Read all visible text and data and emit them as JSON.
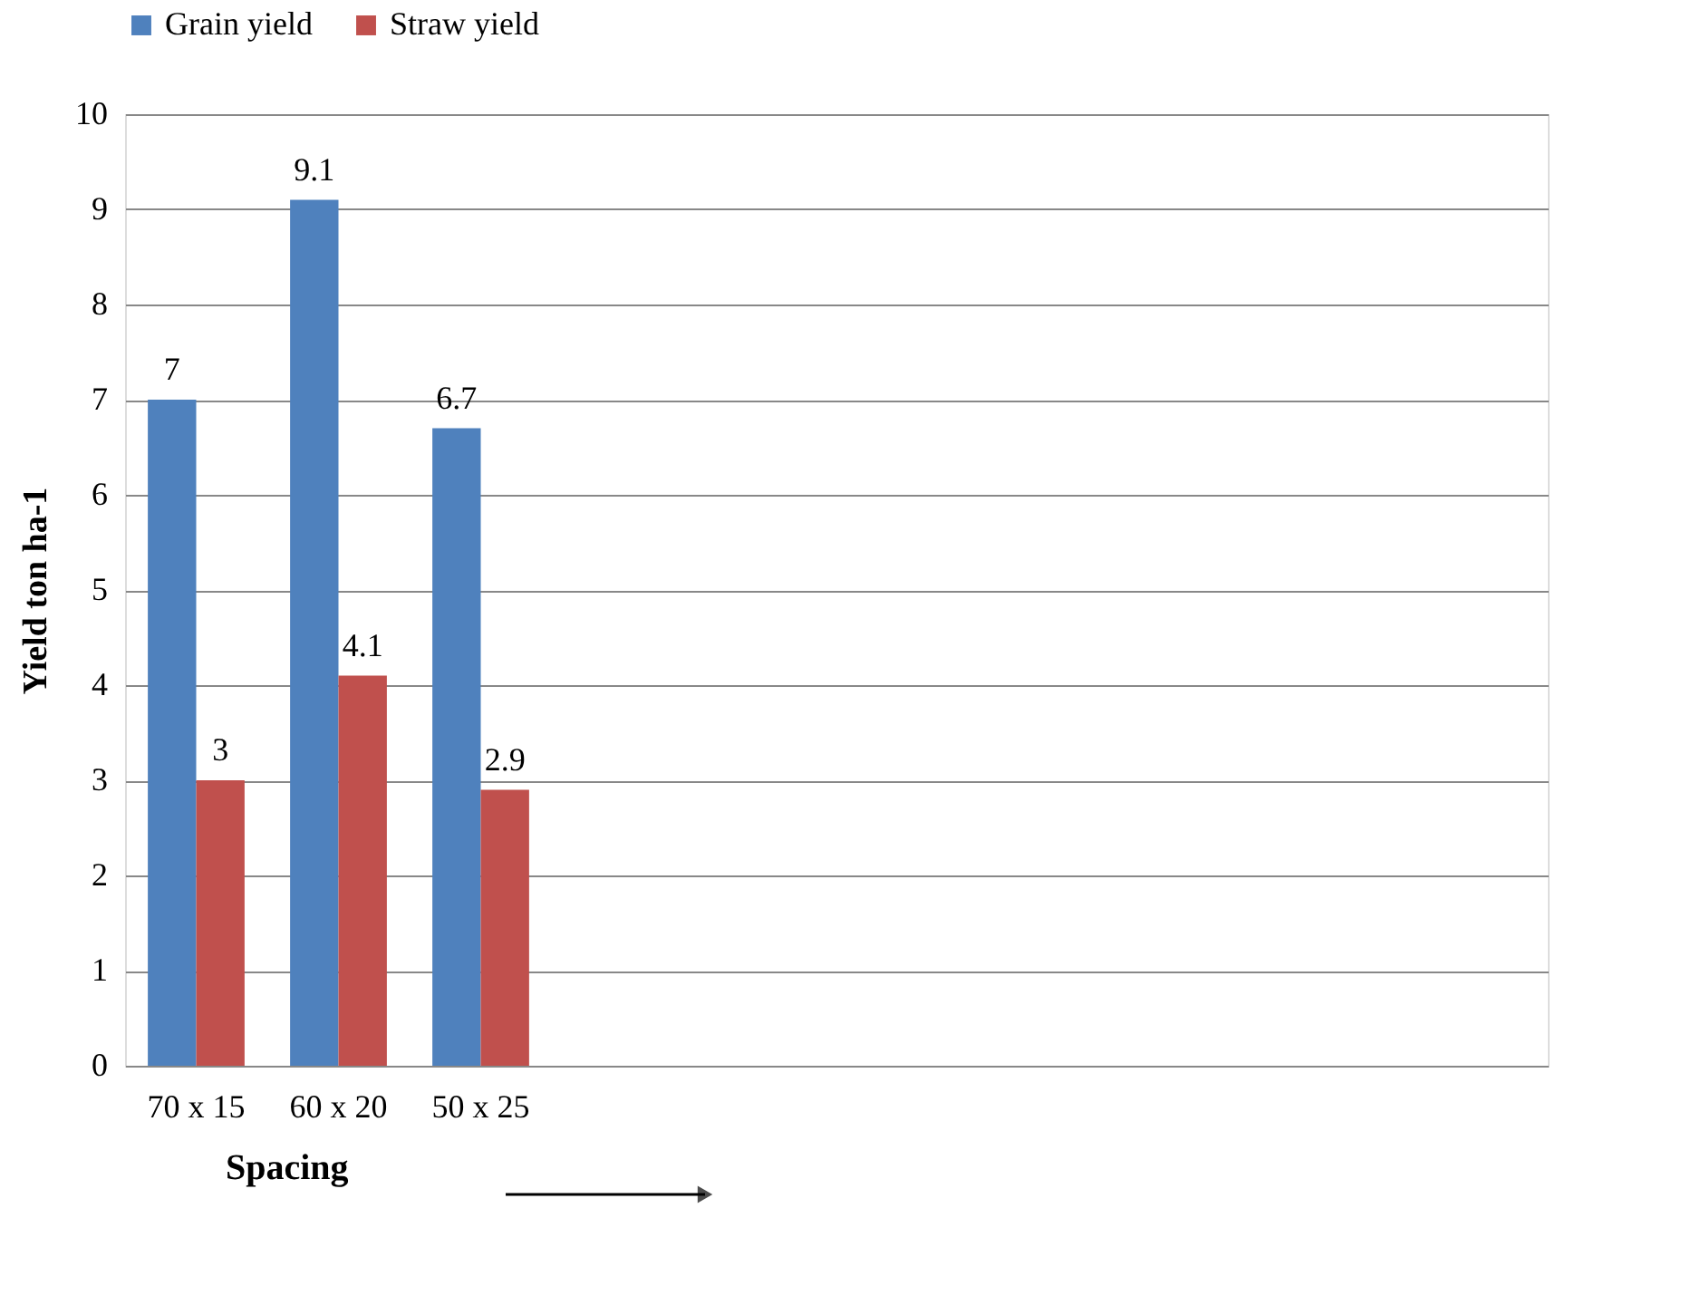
{
  "chart_data": {
    "type": "bar",
    "xlabel": "Spacing",
    "ylabel": "Yield ton ha-1",
    "categories": [
      "70 x 15",
      "60 x 20",
      "50  x  25",
      null,
      null,
      null,
      null,
      null,
      null,
      null
    ],
    "series": [
      {
        "name": "Grain yield",
        "color": "#4f81bd",
        "values": [
          7,
          9.1,
          6.7,
          null,
          null,
          null,
          null,
          null,
          null,
          null
        ]
      },
      {
        "name": "Straw yield",
        "color": "#c0504d",
        "values": [
          3,
          4.1,
          2.9,
          null,
          null,
          null,
          null,
          null,
          null,
          null
        ]
      }
    ],
    "ylim": [
      0,
      10
    ],
    "yticks": [
      0,
      1,
      2,
      3,
      4,
      5,
      6,
      7,
      8,
      9,
      10
    ],
    "grid": "y",
    "legend": "top",
    "data_labels": true
  }
}
